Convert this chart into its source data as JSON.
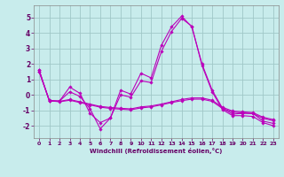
{
  "xlabel": "Windchill (Refroidissement éolien,°C)",
  "bg_color": "#c8ecec",
  "line_color": "#bb00bb",
  "grid_color": "#a0c8c8",
  "ylim": [
    -2.8,
    5.8
  ],
  "xlim": [
    -0.5,
    23.5
  ],
  "yticks": [
    -2,
    -1,
    0,
    1,
    2,
    3,
    4,
    5
  ],
  "xticks": [
    0,
    1,
    2,
    3,
    4,
    5,
    6,
    7,
    8,
    9,
    10,
    11,
    12,
    13,
    14,
    15,
    16,
    17,
    18,
    19,
    20,
    21,
    22,
    23
  ],
  "series": [
    [
      1.6,
      -0.4,
      -0.4,
      0.5,
      0.1,
      -1.2,
      -1.8,
      -1.5,
      0.3,
      0.05,
      1.4,
      1.1,
      3.2,
      4.4,
      5.1,
      4.4,
      2.0,
      0.3,
      -0.85,
      -1.25,
      -1.2,
      -1.2,
      -1.7,
      -1.85
    ],
    [
      1.6,
      -0.4,
      -0.4,
      0.2,
      -0.1,
      -0.9,
      -2.2,
      -1.5,
      0.0,
      -0.15,
      0.9,
      0.8,
      2.8,
      4.1,
      4.95,
      4.45,
      1.9,
      0.2,
      -0.95,
      -1.35,
      -1.35,
      -1.4,
      -1.8,
      -2.0
    ],
    [
      1.5,
      -0.35,
      -0.42,
      -0.3,
      -0.45,
      -0.6,
      -0.75,
      -0.82,
      -0.87,
      -0.91,
      -0.78,
      -0.72,
      -0.6,
      -0.45,
      -0.3,
      -0.2,
      -0.2,
      -0.35,
      -0.8,
      -1.05,
      -1.1,
      -1.15,
      -1.45,
      -1.6
    ],
    [
      1.5,
      -0.38,
      -0.45,
      -0.35,
      -0.5,
      -0.65,
      -0.8,
      -0.88,
      -0.93,
      -0.97,
      -0.85,
      -0.78,
      -0.65,
      -0.5,
      -0.38,
      -0.28,
      -0.28,
      -0.42,
      -0.88,
      -1.12,
      -1.18,
      -1.22,
      -1.52,
      -1.68
    ]
  ]
}
